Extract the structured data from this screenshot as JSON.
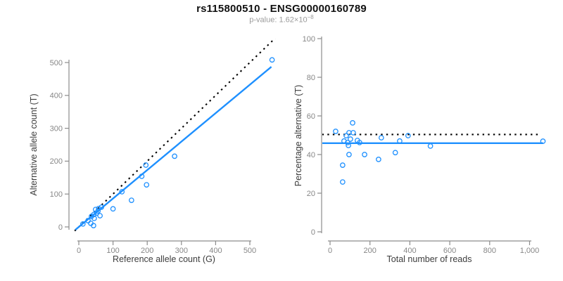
{
  "header": {
    "title": "rs115800510 - ENSG00000160789",
    "pvalue_prefix": "p-value: ",
    "pvalue_mantissa": "1.62",
    "pvalue_times": "×",
    "pvalue_base": "10",
    "pvalue_exponent": "−8"
  },
  "colors": {
    "accent_blue": "#1E90FF",
    "identity_black": "#000000",
    "axis": "#8c8c8c",
    "tick_label": "#878787",
    "axis_title": "#3d3d3d",
    "subtitle": "#9b9b9b",
    "title": "#111111",
    "background": "#ffffff"
  },
  "chart_data": [
    {
      "id": "allele-counts",
      "type": "scatter",
      "xlabel": "Reference allele count (G)",
      "ylabel": "Alternative allele count (T)",
      "xlim": [
        0,
        575
      ],
      "ylim": [
        0,
        560
      ],
      "xticks": [
        0,
        100,
        200,
        300,
        400,
        500
      ],
      "yticks": [
        0,
        100,
        200,
        300,
        400,
        500
      ],
      "xtick_labels": [
        "0",
        "100",
        "200",
        "300",
        "400",
        "500"
      ],
      "ytick_labels": [
        "0",
        "100",
        "200",
        "300",
        "400",
        "500"
      ],
      "grid": false,
      "legend": "none",
      "marker": "open-circle",
      "points": [
        [
          565,
          508
        ],
        [
          280,
          215
        ],
        [
          196,
          188
        ],
        [
          184,
          154
        ],
        [
          198,
          128
        ],
        [
          154,
          81
        ],
        [
          126,
          107
        ],
        [
          100,
          55
        ],
        [
          66,
          60
        ],
        [
          58,
          56
        ],
        [
          56,
          48
        ],
        [
          49,
          53
        ],
        [
          52,
          42
        ],
        [
          62,
          34
        ],
        [
          44,
          38
        ],
        [
          37,
          32
        ],
        [
          45,
          26
        ],
        [
          27,
          19
        ],
        [
          35,
          11
        ],
        [
          12,
          9
        ],
        [
          43,
          4
        ]
      ],
      "lines": [
        {
          "name": "expected-identity",
          "style": "dotted",
          "color": "#000000",
          "slope": 1,
          "intercept": 0,
          "x_range": [
            -12,
            585
          ]
        },
        {
          "name": "fitted-ratio",
          "style": "solid",
          "color": "#1E90FF",
          "slope": 0.865,
          "intercept": 0,
          "x_range": [
            -10,
            563
          ]
        }
      ]
    },
    {
      "id": "percentage-vs-depth",
      "type": "scatter",
      "xlabel": "Total number of reads",
      "ylabel": "Percentage alternative (T)",
      "xlim": [
        0,
        1100
      ],
      "ylim": [
        0,
        100
      ],
      "xticks": [
        0,
        200,
        400,
        600,
        800,
        1000
      ],
      "yticks": [
        0,
        20,
        40,
        60,
        80,
        100
      ],
      "xtick_labels": [
        "0",
        "200",
        "400",
        "600",
        "800",
        "1,000"
      ],
      "ytick_labels": [
        "0",
        "20",
        "40",
        "60",
        "80",
        "100"
      ],
      "grid": false,
      "legend": "none",
      "marker": "open-circle",
      "points": [
        [
          28,
          52
        ],
        [
          63,
          34.5
        ],
        [
          63,
          25.8
        ],
        [
          70,
          47
        ],
        [
          81,
          49.8
        ],
        [
          88,
          46.2
        ],
        [
          92,
          44.7
        ],
        [
          95,
          51.3
        ],
        [
          95,
          40
        ],
        [
          102,
          48
        ],
        [
          113,
          56.4
        ],
        [
          116,
          51.3
        ],
        [
          137,
          47.3
        ],
        [
          148,
          46.2
        ],
        [
          173,
          40
        ],
        [
          243,
          37.5
        ],
        [
          257,
          48.7
        ],
        [
          327,
          41
        ],
        [
          349,
          47
        ],
        [
          391,
          49.8
        ],
        [
          503,
          44.4
        ],
        [
          1067,
          46.9
        ]
      ],
      "lines": [
        {
          "name": "expected-50pct",
          "style": "dotted",
          "color": "#000000",
          "slope": 0,
          "intercept": 50.4,
          "x_range": [
            -40,
            1043
          ]
        },
        {
          "name": "observed-mean-pct",
          "style": "solid",
          "color": "#1E90FF",
          "slope": 0,
          "intercept": 45.9,
          "x_range": [
            -40,
            1068
          ]
        }
      ]
    }
  ]
}
